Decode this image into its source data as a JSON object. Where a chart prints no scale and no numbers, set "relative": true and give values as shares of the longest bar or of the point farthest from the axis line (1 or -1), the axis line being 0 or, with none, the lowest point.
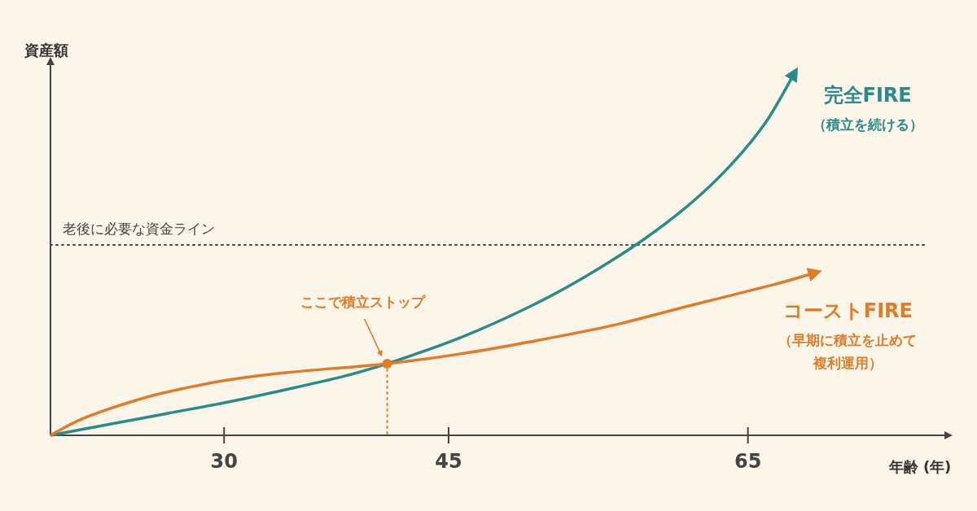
{
  "chart_data": {
    "type": "line",
    "relative": true,
    "xlabel": "年齢 (年)",
    "ylabel": "資産額",
    "xlim": [
      18.4,
      78.4
    ],
    "xticks": [
      30,
      45,
      65
    ],
    "tick_labels": "x",
    "grid": false,
    "legend": false,
    "marker": "none",
    "line_style": "solid",
    "series": [
      {
        "name": "完全FIRE",
        "color": "#2b8a8a",
        "x": [
          18.4,
          25.9,
          30,
          34.1,
          37.9,
          40.9,
          45.8,
          50.4,
          54.2,
          58.0,
          61.3,
          64.0,
          66.2,
          68.1
        ],
        "values": [
          0,
          0.058,
          0.09,
          0.126,
          0.162,
          0.198,
          0.27,
          0.355,
          0.44,
          0.54,
          0.645,
          0.753,
          0.865,
          1.0
        ]
      },
      {
        "name": "コーストFIRE",
        "color": "#e07b28",
        "x": [
          18.4,
          20.5,
          23.2,
          25.9,
          30,
          34.1,
          40.9,
          45.8,
          50.4,
          55.9,
          61.3,
          66.7,
          69.5
        ],
        "values": [
          0,
          0.045,
          0.085,
          0.117,
          0.151,
          0.173,
          0.198,
          0.225,
          0.258,
          0.303,
          0.36,
          0.416,
          0.449
        ]
      },
      {
        "type": "scatter",
        "color": "#e07b28",
        "marker": "circle",
        "x": [
          40.9
        ],
        "values": [
          0.198
        ]
      }
    ],
    "ref_lines": [
      {
        "axis": "y",
        "value": 0.526,
        "label": "老後に必要な資金ライン",
        "color": "#444444",
        "line_style": "dotted"
      },
      {
        "axis": "x",
        "value": 40.9,
        "color": "#e07b28",
        "line_style": "dotted"
      }
    ],
    "annotations": [
      "ここで積立ストップ",
      "（積立を続ける）",
      "（早期に積立を止めて複利運用）"
    ]
  }
}
